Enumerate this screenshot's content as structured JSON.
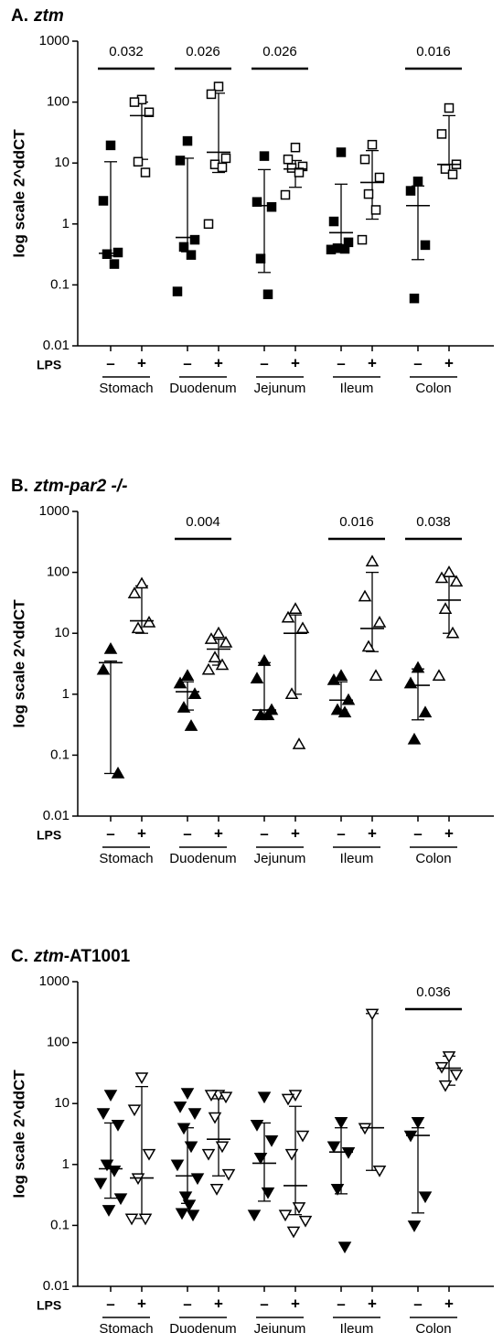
{
  "chart_data": [
    {
      "type": "scatter",
      "title_parts": [
        {
          "text": "A.",
          "italic": false
        },
        {
          "text": "ztm",
          "italic": true
        }
      ],
      "y_label": "log scale 2^ddCT",
      "log_y": true,
      "group_label": "LPS",
      "ylim": [
        0.01,
        1000
      ],
      "yticks": [
        0.01,
        0.1,
        1,
        10,
        100,
        1000
      ],
      "categories": [
        "Stomach",
        "Duodenum",
        "Jejunum",
        "Ileum",
        "Colon"
      ],
      "pvalues": [
        "0.032",
        "0.026",
        "0.026",
        null,
        "0.016"
      ],
      "series": [
        {
          "name": "–",
          "marker": "square",
          "filled": true,
          "color": "#000000",
          "values": [
            [
              19.5,
              2.4,
              0.34,
              0.32,
              0.22
            ],
            [
              23,
              11,
              0.55,
              0.42,
              0.31,
              0.078
            ],
            [
              13,
              2.3,
              1.9,
              0.27,
              0.07
            ],
            [
              15,
              1.1,
              0.5,
              0.4,
              0.39,
              0.38
            ],
            [
              5,
              3.5,
              0.45,
              0.06
            ]
          ],
          "medians": [
            0.33,
            0.6,
            2,
            0.72,
            2
          ],
          "lows": [
            0.3,
            0.35,
            0.16,
            0.42,
            0.26
          ],
          "highs": [
            10.5,
            12,
            7.8,
            4.5,
            4.2
          ]
        },
        {
          "name": "+",
          "marker": "square",
          "filled": false,
          "color": "#000000",
          "values": [
            [
              110,
              100,
              68,
              10.5,
              7
            ],
            [
              180,
              135,
              12,
              9.5,
              8.5,
              1.0
            ],
            [
              18,
              11.5,
              8.8,
              8.3,
              7,
              3
            ],
            [
              20,
              11.5,
              5.8,
              3.1,
              1.7,
              0.55
            ],
            [
              80,
              30,
              9.5,
              8,
              6.5
            ]
          ],
          "medians": [
            60,
            15,
            8,
            4.8,
            9.5
          ],
          "lows": [
            11.5,
            7,
            4,
            1.2,
            7
          ],
          "highs": [
            100,
            140,
            11,
            16,
            60
          ]
        }
      ]
    },
    {
      "type": "scatter",
      "title_parts": [
        {
          "text": "B.",
          "italic": false
        },
        {
          "text": "ztm-par2 -/-",
          "italic": true
        }
      ],
      "y_label": "log scale 2^ddCT",
      "log_y": true,
      "group_label": "LPS",
      "ylim": [
        0.01,
        1000
      ],
      "yticks": [
        0.01,
        0.1,
        1,
        10,
        100,
        1000
      ],
      "categories": [
        "Stomach",
        "Duodenum",
        "Jejunum",
        "Ileum",
        "Colon"
      ],
      "pvalues": [
        null,
        "0.004",
        null,
        "0.016",
        "0.038"
      ],
      "series": [
        {
          "name": "–",
          "marker": "triangle",
          "filled": true,
          "color": "#000000",
          "values": [
            [
              5.5,
              2.5,
              0.05
            ],
            [
              2,
              1.5,
              1,
              0.6,
              0.3
            ],
            [
              3.5,
              1.8,
              0.55,
              0.45,
              0.45
            ],
            [
              2,
              1.7,
              0.8,
              0.55,
              0.5
            ],
            [
              2.7,
              1.5,
              0.5,
              0.18
            ]
          ],
          "medians": [
            3.3,
            1.1,
            0.55,
            0.8,
            1.4
          ],
          "lows": [
            0.05,
            0.55,
            0.45,
            0.55,
            0.38
          ],
          "highs": [
            3.5,
            1.6,
            3.3,
            1.6,
            2.6
          ]
        },
        {
          "name": "+",
          "marker": "triangle",
          "filled": false,
          "color": "#000000",
          "values": [
            [
              65,
              45,
              15,
              12
            ],
            [
              10,
              8,
              7,
              4,
              3,
              2.5
            ],
            [
              25,
              18,
              12,
              1.0,
              0.15
            ],
            [
              150,
              40,
              15,
              6,
              2
            ],
            [
              100,
              80,
              70,
              25,
              10,
              2
            ]
          ],
          "medians": [
            16,
            5.5,
            10,
            12,
            35
          ],
          "lows": [
            10,
            3,
            1,
            5,
            10
          ],
          "highs": [
            60,
            8,
            20,
            100,
            85
          ]
        }
      ]
    },
    {
      "type": "scatter",
      "title_parts": [
        {
          "text": "C.",
          "italic": false
        },
        {
          "text": "ztm",
          "italic": true
        },
        {
          "text": "-AT1001",
          "italic": false
        }
      ],
      "y_label": "log scale 2^ddCT",
      "log_y": true,
      "group_label": "LPS",
      "ylim": [
        0.01,
        1000
      ],
      "yticks": [
        0.01,
        0.1,
        1,
        10,
        100,
        1000
      ],
      "categories": [
        "Stomach",
        "Duodenum",
        "Jejunum",
        "Ileum",
        "Colon"
      ],
      "pvalues": [
        null,
        null,
        null,
        null,
        "0.036"
      ],
      "series": [
        {
          "name": "–",
          "marker": "triangle-down",
          "filled": true,
          "color": "#000000",
          "values": [
            [
              14,
              7,
              4.5,
              1,
              0.8,
              0.5,
              0.28,
              0.18
            ],
            [
              15,
              9,
              7,
              4,
              2,
              1,
              0.6,
              0.3,
              0.22,
              0.16,
              0.15
            ],
            [
              13,
              4.5,
              2.5,
              1.3,
              0.35,
              0.15
            ],
            [
              5,
              2,
              1.6,
              0.4,
              0.045
            ],
            [
              5,
              3,
              0.3,
              0.1
            ]
          ],
          "medians": [
            0.85,
            0.65,
            1.05,
            1.6,
            3
          ],
          "lows": [
            0.28,
            0.23,
            0.25,
            0.33,
            0.16
          ],
          "highs": [
            4.8,
            4,
            4.8,
            4,
            4
          ]
        },
        {
          "name": "+",
          "marker": "triangle-down",
          "filled": false,
          "color": "#000000",
          "values": [
            [
              27,
              8,
              1.5,
              0.6,
              0.13,
              0.13
            ],
            [
              14,
              14,
              13,
              6,
              2,
              1.5,
              0.7,
              0.4
            ],
            [
              14,
              12,
              3,
              1.5,
              0.2,
              0.15,
              0.12,
              0.08
            ],
            [
              300,
              4,
              0.8
            ],
            [
              60,
              40,
              30,
              20
            ]
          ],
          "medians": [
            0.6,
            2.6,
            0.45,
            4,
            38
          ],
          "lows": [
            0.13,
            0.65,
            0.15,
            0.8,
            20
          ],
          "highs": [
            19,
            12,
            9,
            300,
            60
          ]
        }
      ]
    }
  ]
}
